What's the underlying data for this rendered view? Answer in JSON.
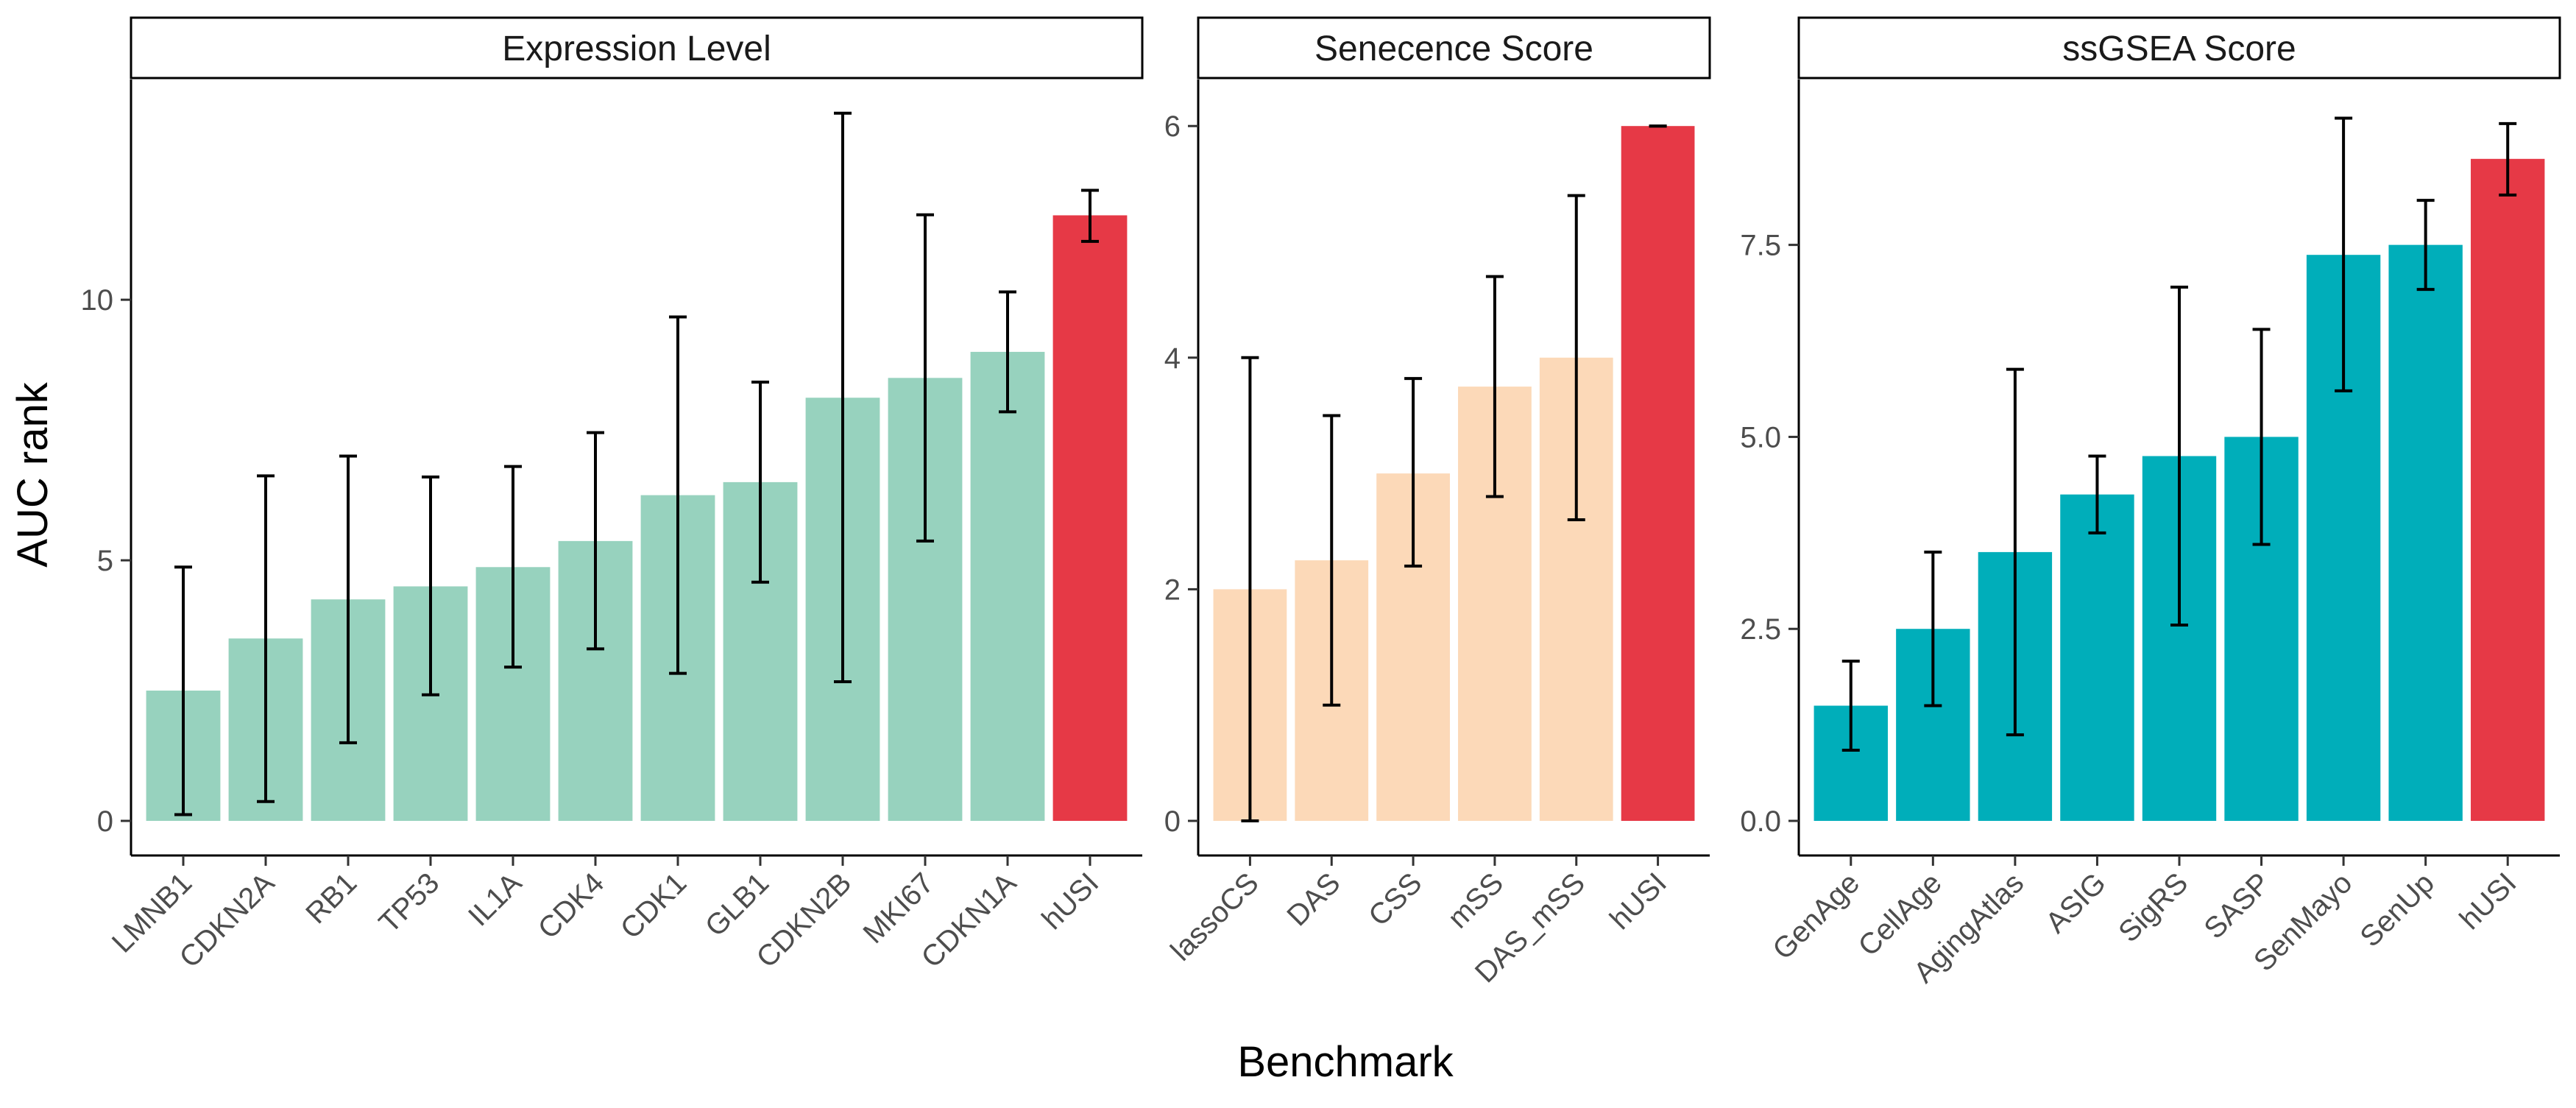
{
  "chart_data": {
    "type": "bar",
    "xlabel": "Benchmark",
    "ylabel": "AUC rank",
    "highlight_color": "#E63946",
    "panels": [
      {
        "title": "Expression Level",
        "color": "#97D2BE",
        "ylim": [
          0,
          14
        ],
        "yticks": [
          0,
          5,
          10
        ],
        "ytick_labels": [
          "0",
          "5",
          "10"
        ],
        "categories": [
          "LMNB1",
          "CDKN2A",
          "RB1",
          "TP53",
          "IL1A",
          "CDK4",
          "CDK1",
          "GLB1",
          "CDKN2B",
          "MKI67",
          "CDKN1A",
          "hUSI"
        ],
        "values": [
          2.5,
          3.5,
          4.25,
          4.5,
          4.87,
          5.37,
          6.25,
          6.5,
          8.12,
          8.5,
          9.0,
          11.62
        ],
        "err_low": [
          0.12,
          0.37,
          1.5,
          2.42,
          2.95,
          3.3,
          2.83,
          4.58,
          2.67,
          5.37,
          7.85,
          11.12
        ],
        "err_high": [
          4.87,
          6.62,
          7.0,
          6.6,
          6.8,
          7.45,
          9.67,
          8.42,
          13.58,
          11.63,
          10.15,
          12.1
        ]
      },
      {
        "title": "Senecence Score",
        "color": "#FCD9B8",
        "ylim": [
          0,
          6.3
        ],
        "yticks": [
          0,
          2,
          4,
          6
        ],
        "ytick_labels": [
          "0",
          "2",
          "4",
          "6"
        ],
        "categories": [
          "lassoCS",
          "DAS",
          "CSS",
          "mSS",
          "DAS_mSS",
          "hUSI"
        ],
        "values": [
          2.0,
          2.25,
          3.0,
          3.75,
          4.0,
          6.0
        ],
        "err_low": [
          0.0,
          1.0,
          2.2,
          2.8,
          2.6,
          6.0
        ],
        "err_high": [
          4.0,
          3.5,
          3.82,
          4.7,
          5.4,
          6.0
        ]
      },
      {
        "title": "ssGSEA Score",
        "color": "#00AEBA",
        "ylim": [
          0,
          9.5
        ],
        "yticks": [
          0,
          2.5,
          5,
          7.5
        ],
        "ytick_labels": [
          "0.0",
          "2.5",
          "5.0",
          "7.5"
        ],
        "categories": [
          "GenAge",
          "CellAge",
          "AgingAtlas",
          "ASIG",
          "SigRS",
          "SASP",
          "SenMayo",
          "SenUp",
          "hUSI"
        ],
        "values": [
          1.5,
          2.5,
          3.5,
          4.25,
          4.75,
          5.0,
          7.37,
          7.5,
          8.62
        ],
        "err_low": [
          0.92,
          1.5,
          1.12,
          3.75,
          2.55,
          3.6,
          5.6,
          6.92,
          8.15
        ],
        "err_high": [
          2.08,
          3.5,
          5.88,
          4.75,
          6.95,
          6.4,
          9.15,
          8.08,
          9.08
        ]
      }
    ]
  }
}
